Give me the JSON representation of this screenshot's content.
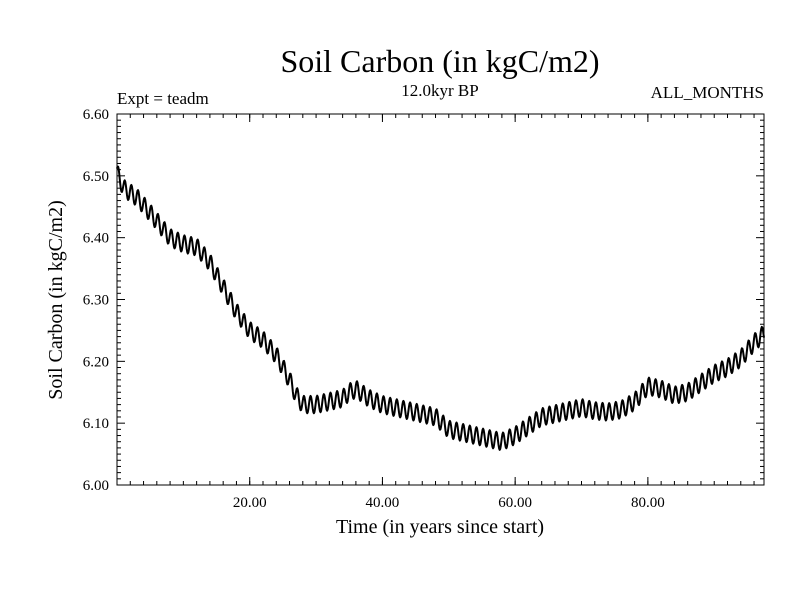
{
  "chart_data": {
    "type": "line",
    "title": "Soil Carbon (in kgC/m2)",
    "subtitle": "12.0kyr BP",
    "left_note": "Expt = teadm",
    "right_note": "ALL_MONTHS",
    "xlabel": "Time (in years since start)",
    "ylabel": "Soil Carbon (in kgC/m2)",
    "xlim": [
      0,
      97.5
    ],
    "ylim": [
      6.0,
      6.6
    ],
    "xticks": [
      20,
      40,
      60,
      80
    ],
    "xtick_labels": [
      "20.00",
      "40.00",
      "60.00",
      "80.00"
    ],
    "yticks": [
      6.0,
      6.1,
      6.2,
      6.3,
      6.4,
      6.5,
      6.6
    ],
    "ytick_labels": [
      "6.00",
      "6.10",
      "6.20",
      "6.30",
      "6.40",
      "6.50",
      "6.60"
    ],
    "grid": false,
    "line_color": "#000000",
    "seasonal_amplitude": 0.014,
    "trend": {
      "x": [
        0,
        1,
        3,
        5,
        8,
        10,
        12,
        14,
        16,
        18,
        20,
        22,
        24,
        26,
        27,
        28,
        30,
        32,
        34,
        35,
        36,
        38,
        40,
        42,
        44,
        46,
        48,
        50,
        52,
        54,
        56,
        58,
        60,
        62,
        64,
        66,
        68,
        70,
        72,
        74,
        76,
        78,
        80,
        82,
        84,
        86,
        88,
        90,
        92,
        94,
        96,
        97.5
      ],
      "y": [
        6.505,
        6.48,
        6.465,
        6.44,
        6.4,
        6.39,
        6.385,
        6.36,
        6.32,
        6.28,
        6.25,
        6.235,
        6.21,
        6.17,
        6.145,
        6.13,
        6.13,
        6.135,
        6.14,
        6.15,
        6.155,
        6.14,
        6.13,
        6.125,
        6.12,
        6.115,
        6.11,
        6.09,
        6.085,
        6.08,
        6.075,
        6.07,
        6.08,
        6.095,
        6.11,
        6.115,
        6.12,
        6.125,
        6.12,
        6.118,
        6.122,
        6.135,
        6.16,
        6.155,
        6.145,
        6.15,
        6.165,
        6.18,
        6.19,
        6.205,
        6.23,
        6.245
      ]
    }
  }
}
